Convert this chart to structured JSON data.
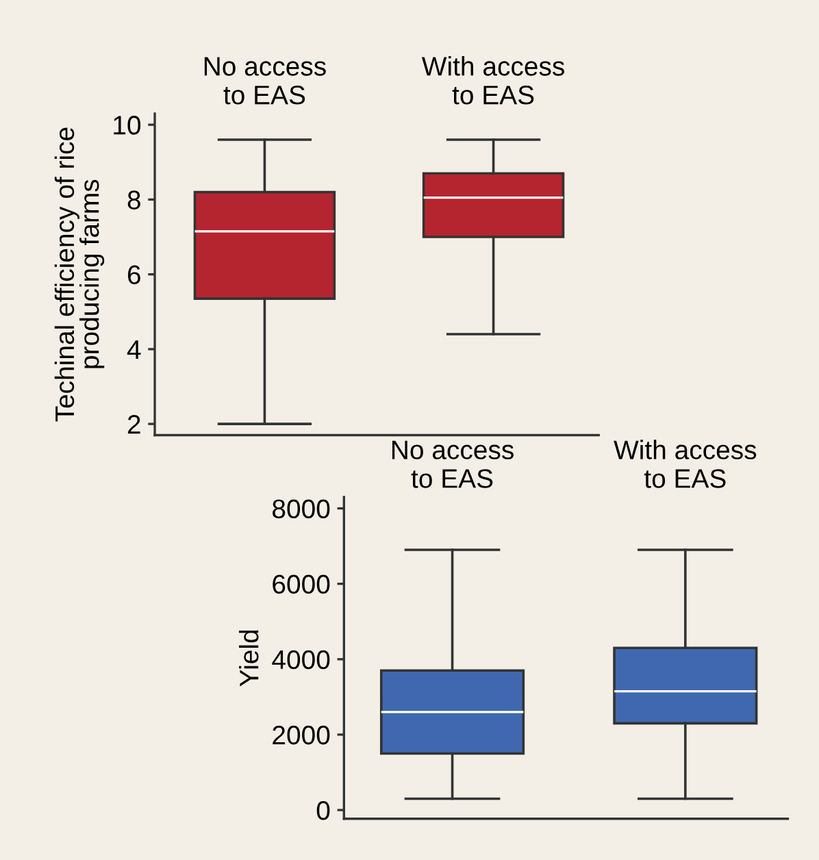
{
  "chart_data": [
    {
      "type": "box",
      "categories": [
        "No access\nto EAS",
        "With access\nto EAS"
      ],
      "ylabel": "Techinal efficiency of rice\nproducing farms",
      "ylim": [
        1.7,
        10.3
      ],
      "yticks": [
        2,
        4,
        6,
        8,
        10
      ],
      "grid": false,
      "legend": false,
      "series": [
        {
          "color": "#b5252f",
          "boxes": [
            {
              "low": 2.0,
              "q1": 5.35,
              "median": 7.15,
              "q3": 8.2,
              "high": 9.6
            },
            {
              "low": 4.4,
              "q1": 7.0,
              "median": 8.05,
              "q3": 8.7,
              "high": 9.6
            }
          ]
        }
      ]
    },
    {
      "type": "box",
      "categories": [
        "No access\nto EAS",
        "With access\nto EAS"
      ],
      "ylabel": "Yield",
      "ylim": [
        -230,
        8300
      ],
      "yticks": [
        0,
        2000,
        4000,
        6000,
        8000
      ],
      "grid": false,
      "legend": false,
      "series": [
        {
          "color": "#3f68b0",
          "boxes": [
            {
              "low": 300,
              "q1": 1500,
              "median": 2600,
              "q3": 3700,
              "high": 6900
            },
            {
              "low": 300,
              "q1": 2300,
              "median": 3150,
              "q3": 4300,
              "high": 6900
            }
          ]
        }
      ]
    }
  ]
}
